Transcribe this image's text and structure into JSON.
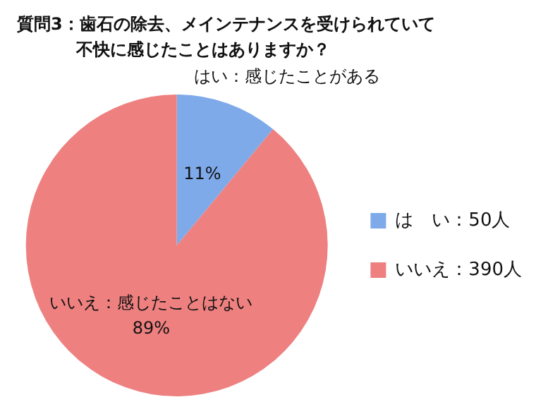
{
  "chart_data": {
    "type": "pie",
    "title": "質問3：歯石の除去、メインテナンスを受けられていて不快に感じたことはありますか？",
    "categories": [
      "は　い：50人",
      "いいえ：390人"
    ],
    "values": [
      11,
      89
    ],
    "value_labels": [
      "11%",
      "89%"
    ],
    "colors": [
      "#7eaaea",
      "#ee8080"
    ],
    "annotations": [
      "はい：感じたことがある",
      "いいえ：感じたことはない"
    ],
    "legend": "right"
  }
}
